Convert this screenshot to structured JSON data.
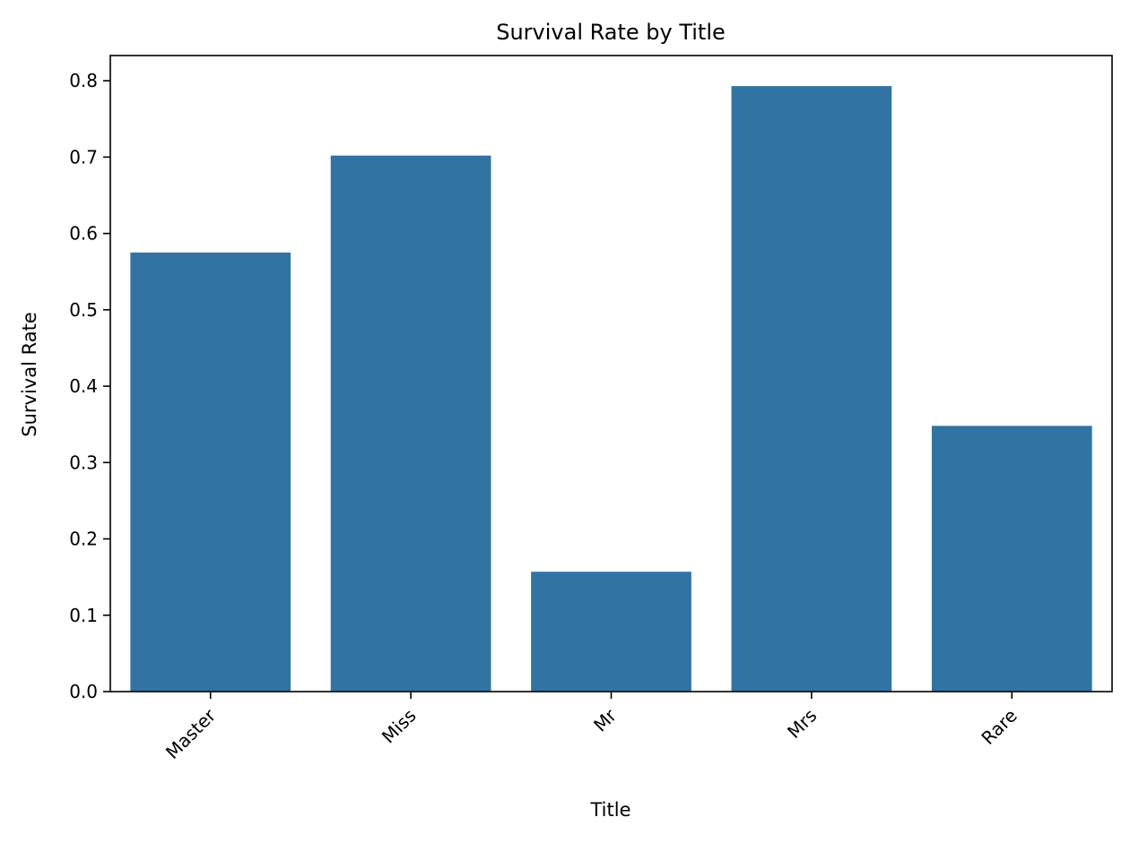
{
  "chart_data": {
    "type": "bar",
    "title": "Survival Rate by Title",
    "xlabel": "Title",
    "ylabel": "Survival Rate",
    "categories": [
      "Master",
      "Miss",
      "Mr",
      "Mrs",
      "Rare"
    ],
    "values": [
      0.575,
      0.702,
      0.157,
      0.793,
      0.348
    ],
    "ylim": [
      0,
      0.833
    ],
    "yticks": [
      "0.0",
      "0.1",
      "0.2",
      "0.3",
      "0.4",
      "0.5",
      "0.6",
      "0.7",
      "0.8"
    ],
    "x_tick_rotation_deg": -45,
    "bar_color": "#3274a1",
    "grid": false,
    "legend": "none"
  }
}
